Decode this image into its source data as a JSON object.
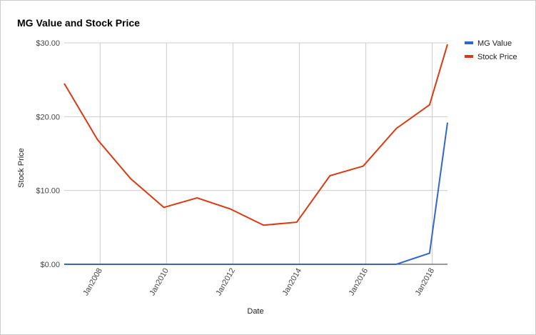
{
  "chart_data": {
    "type": "line",
    "title": "MG Value and Stock Price",
    "x_label": "Date",
    "y_label": "Stock Price",
    "x": [
      2006.92,
      2007.92,
      2008.92,
      2009.92,
      2010.92,
      2011.92,
      2012.92,
      2013.92,
      2014.92,
      2015.92,
      2016.92,
      2017.92,
      2018.46
    ],
    "series": [
      {
        "name": "MG Value",
        "color": "#3366cc",
        "values": [
          0,
          0,
          0,
          0,
          0,
          0,
          0,
          0,
          0,
          0,
          0,
          1.5,
          19.2
        ]
      },
      {
        "name": "Stock Price",
        "color": "#dc3912",
        "values": [
          24.5,
          16.9,
          11.6,
          7.7,
          9.0,
          7.5,
          5.3,
          5.7,
          12.0,
          13.3,
          18.4,
          21.6,
          29.8
        ]
      }
    ],
    "xlim": [
      2006.92,
      2018.46
    ],
    "xticks": [
      {
        "value": 2008,
        "label": "Jan2008"
      },
      {
        "value": 2010,
        "label": "Jan2010"
      },
      {
        "value": 2012,
        "label": "Jan2012"
      },
      {
        "value": 2014,
        "label": "Jan2014"
      },
      {
        "value": 2016,
        "label": "Jan2016"
      },
      {
        "value": 2018,
        "label": "Jan2018"
      }
    ],
    "ylim": [
      0,
      30
    ],
    "yticks": [
      {
        "value": 0,
        "label": "$0.00"
      },
      {
        "value": 10,
        "label": "$10.00"
      },
      {
        "value": 20,
        "label": "$20.00"
      },
      {
        "value": 30,
        "label": "$30.00"
      }
    ],
    "grid": true,
    "legend": "right"
  }
}
